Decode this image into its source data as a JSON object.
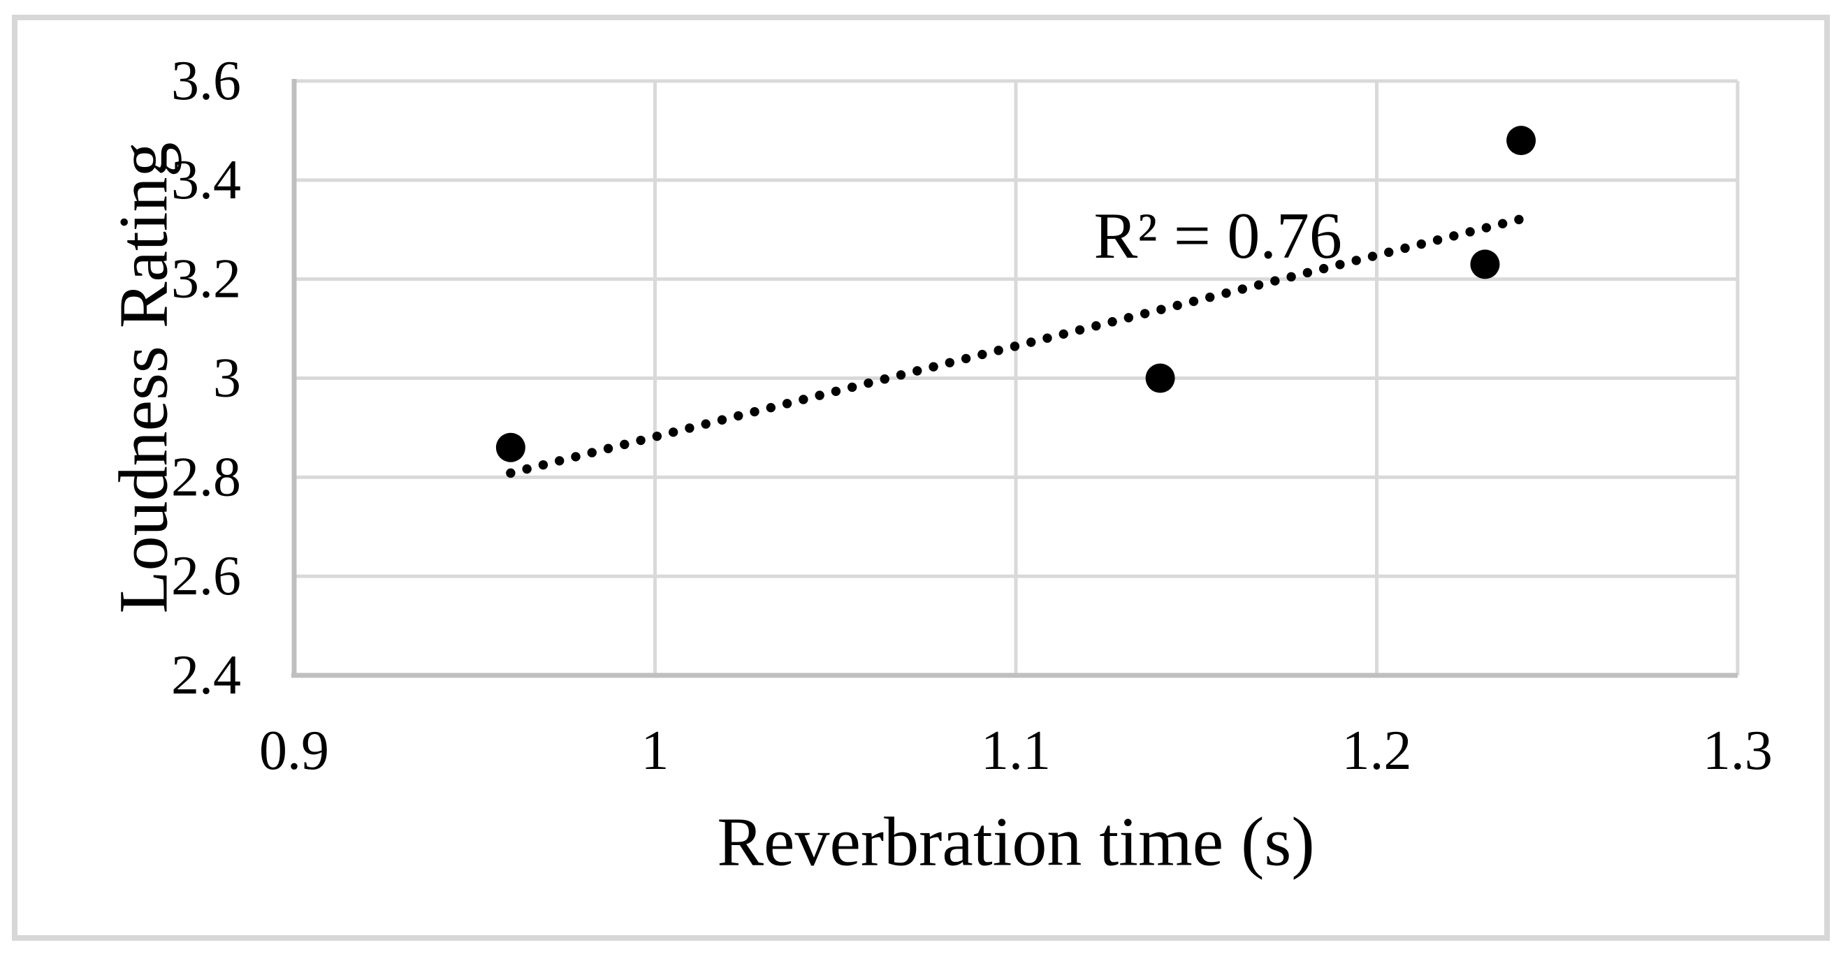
{
  "figure": {
    "background_color": "#ffffff",
    "border_color": "#d7d7d7"
  },
  "chart_data": {
    "type": "scatter",
    "title": "",
    "xlabel": "Reverbration time (s)",
    "ylabel": "Loudness Rating",
    "points": [
      {
        "x": 0.96,
        "y": 2.86
      },
      {
        "x": 1.14,
        "y": 3.0
      },
      {
        "x": 1.23,
        "y": 3.23
      },
      {
        "x": 1.24,
        "y": 3.48
      }
    ],
    "xlim": [
      0.9,
      1.3
    ],
    "ylim": [
      2.4,
      3.6
    ],
    "x_ticks": [
      {
        "value": 0.9,
        "label": "0.9"
      },
      {
        "value": 1.0,
        "label": "1"
      },
      {
        "value": 1.1,
        "label": "1.1"
      },
      {
        "value": 1.2,
        "label": "1.2"
      },
      {
        "value": 1.3,
        "label": "1.3"
      }
    ],
    "y_ticks": [
      {
        "value": 3.6,
        "label": "3.6"
      },
      {
        "value": 3.4,
        "label": "3.4"
      },
      {
        "value": 3.2,
        "label": "3.2"
      },
      {
        "value": 3.0,
        "label": "3"
      },
      {
        "value": 2.8,
        "label": "2.8"
      },
      {
        "value": 2.6,
        "label": "2.6"
      },
      {
        "value": 2.4,
        "label": "2.4"
      }
    ],
    "grid": true,
    "legend": "none",
    "annotation": {
      "text": "R² = 0.76",
      "r_squared": 0.76,
      "x": 1.156,
      "y": 3.287
    },
    "trendline": {
      "style": "dotted",
      "slope": 1.8321,
      "intercept": 1.0496,
      "x_start": 0.96,
      "x_end": 1.24
    },
    "colors": {
      "marker": "#000000",
      "trendline": "#000000",
      "gridline": "#d9d9d9",
      "axis_line": "#bfbfbf",
      "text": "#000000"
    }
  }
}
